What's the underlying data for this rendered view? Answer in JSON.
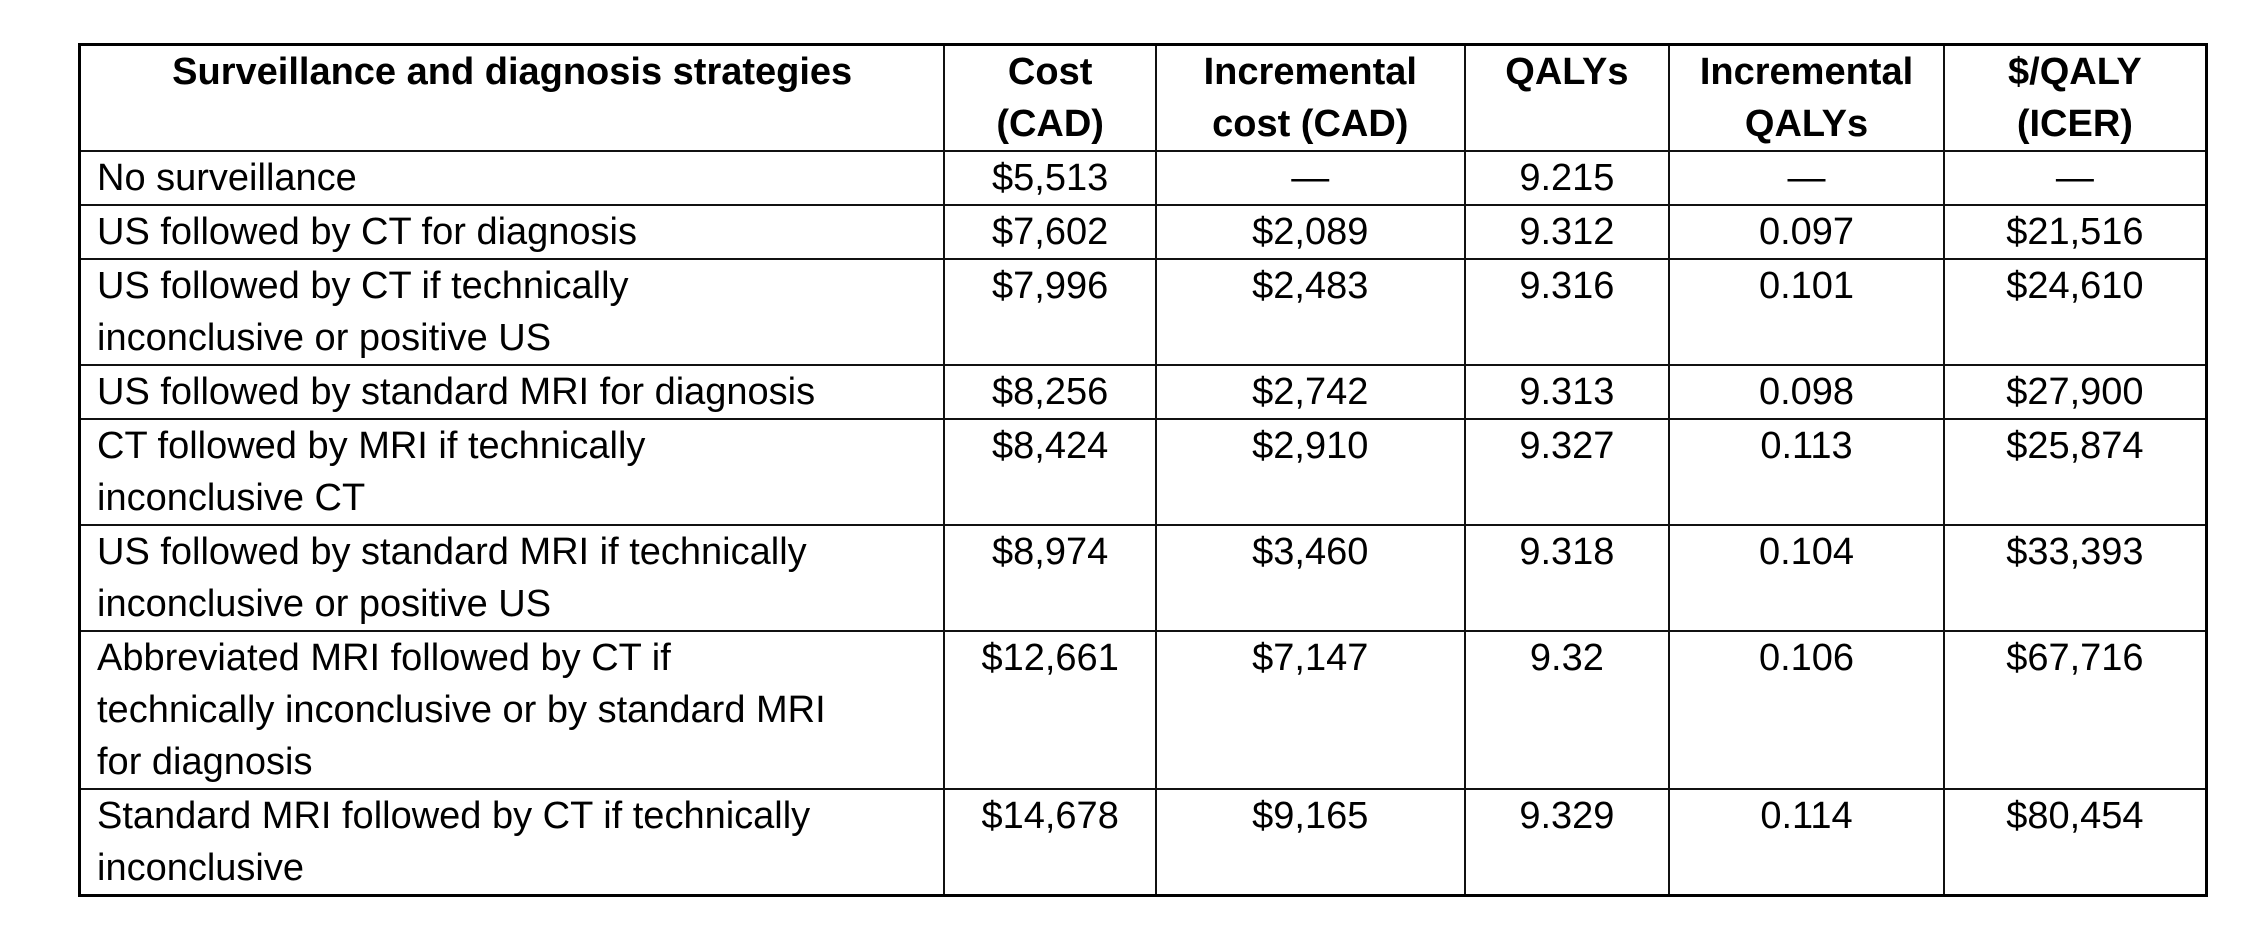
{
  "colors": {
    "background": "#ffffff",
    "text": "#000000",
    "border": "#000000"
  },
  "table": {
    "columns": [
      {
        "id": "strategy",
        "label": "Surveillance and diagnosis strategies",
        "lines": [
          "Surveillance and diagnosis strategies"
        ]
      },
      {
        "id": "cost",
        "label": "Cost (CAD)",
        "lines": [
          "Cost",
          "(CAD)"
        ]
      },
      {
        "id": "incremental_cost",
        "label": "Incremental cost (CAD)",
        "lines": [
          "Incremental",
          "cost (CAD)"
        ]
      },
      {
        "id": "qalys",
        "label": "QALYs",
        "lines": [
          "QALYs"
        ]
      },
      {
        "id": "incremental_qalys",
        "label": "Incremental QALYs",
        "lines": [
          "Incremental",
          "QALYs"
        ]
      },
      {
        "id": "cost_per_qaly_icer",
        "label": "$/QALY (ICER)",
        "lines": [
          "$/QALY",
          "(ICER)"
        ]
      }
    ],
    "rows": [
      {
        "strategy": "No surveillance",
        "strategy_lines": [
          "No surveillance"
        ],
        "cost": "$5,513",
        "incremental_cost": "—",
        "qalys": "9.215",
        "incremental_qalys": "—",
        "cost_per_qaly_icer": "—"
      },
      {
        "strategy": "US followed by CT for diagnosis",
        "strategy_lines": [
          "US followed by CT for diagnosis"
        ],
        "cost": "$7,602",
        "incremental_cost": "$2,089",
        "qalys": "9.312",
        "incremental_qalys": "0.097",
        "cost_per_qaly_icer": "$21,516"
      },
      {
        "strategy": "US followed by CT if technically inconclusive or positive US",
        "strategy_lines": [
          "US followed by CT if technically",
          "inconclusive or positive US"
        ],
        "cost": "$7,996",
        "incremental_cost": "$2,483",
        "qalys": "9.316",
        "incremental_qalys": "0.101",
        "cost_per_qaly_icer": "$24,610"
      },
      {
        "strategy": "US followed by standard MRI for diagnosis",
        "strategy_lines": [
          "US followed by standard MRI for diagnosis"
        ],
        "cost": "$8,256",
        "incremental_cost": "$2,742",
        "qalys": "9.313",
        "incremental_qalys": "0.098",
        "cost_per_qaly_icer": "$27,900"
      },
      {
        "strategy": "CT followed by MRI if technically inconclusive CT",
        "strategy_lines": [
          "CT followed by MRI if technically",
          "inconclusive CT"
        ],
        "cost": "$8,424",
        "incremental_cost": "$2,910",
        "qalys": "9.327",
        "incremental_qalys": "0.113",
        "cost_per_qaly_icer": "$25,874"
      },
      {
        "strategy": "US followed by standard MRI if technically inconclusive or positive US",
        "strategy_lines": [
          "US followed by standard MRI if technically",
          "inconclusive or positive US"
        ],
        "cost": "$8,974",
        "incremental_cost": "$3,460",
        "qalys": "9.318",
        "incremental_qalys": "0.104",
        "cost_per_qaly_icer": "$33,393"
      },
      {
        "strategy": "Abbreviated MRI followed by CT if technically inconclusive or by standard MRI for diagnosis",
        "strategy_lines": [
          "Abbreviated MRI followed by CT if",
          "technically inconclusive or by standard MRI",
          "for diagnosis"
        ],
        "cost": "$12,661",
        "incremental_cost": "$7,147",
        "qalys": "9.32",
        "incremental_qalys": "0.106",
        "cost_per_qaly_icer": "$67,716"
      },
      {
        "strategy": "Standard MRI followed by CT if technically inconclusive",
        "strategy_lines": [
          "Standard MRI followed by CT if technically",
          "inconclusive"
        ],
        "cost": "$14,678",
        "incremental_cost": "$9,165",
        "qalys": "9.329",
        "incremental_qalys": "0.114",
        "cost_per_qaly_icer": "$80,454"
      }
    ]
  }
}
